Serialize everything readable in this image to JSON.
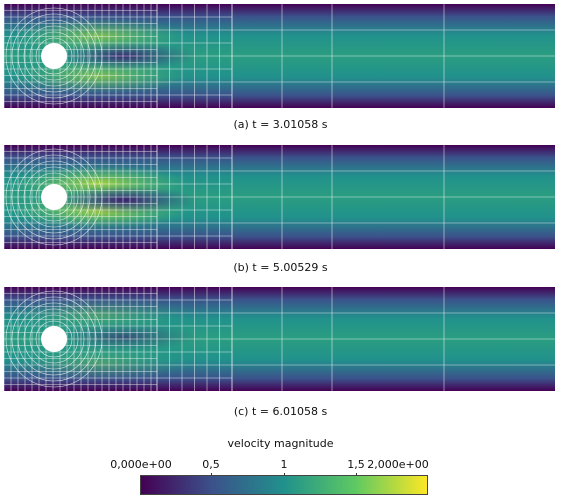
{
  "panels": [
    {
      "caption": "(a) t = 3.01058 s"
    },
    {
      "caption": "(b) t = 5.00529 s"
    },
    {
      "caption": "(c) t = 6.01058 s"
    }
  ],
  "colorbar": {
    "title": "velocity magnitude",
    "ticks": [
      "0,000e+00",
      "0,5",
      "1",
      "1,5",
      "2,000e+00"
    ],
    "tick_values": [
      0,
      0.5,
      1,
      1.5,
      2
    ],
    "range": [
      0,
      2
    ],
    "colormap": "viridis",
    "colors": [
      "#440154",
      "#3b528b",
      "#21918c",
      "#5ec962",
      "#fde725"
    ]
  }
}
